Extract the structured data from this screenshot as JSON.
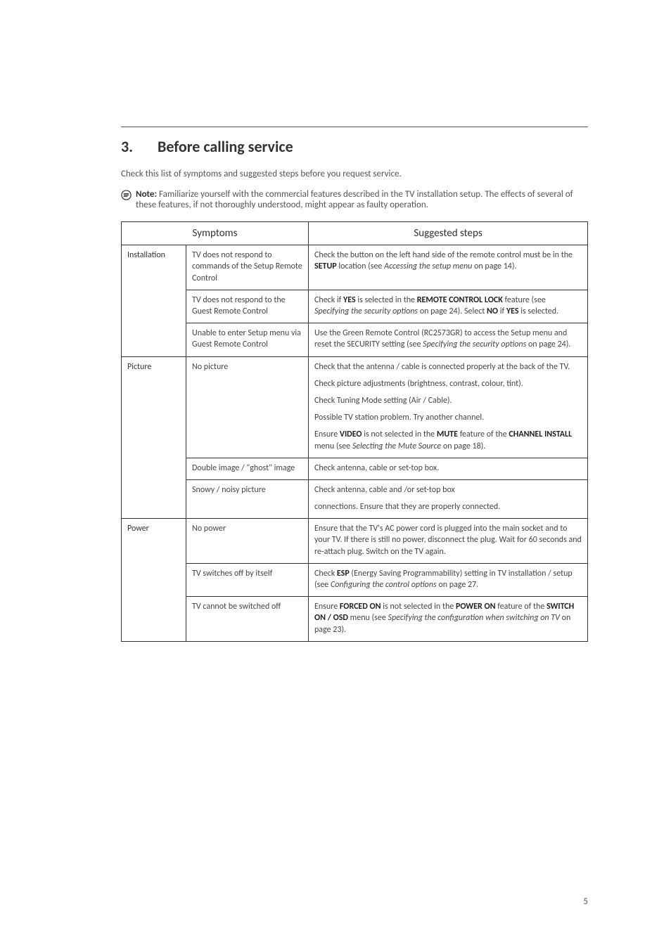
{
  "heading": {
    "number": "3.",
    "title": "Before calling service"
  },
  "intro": "Check this list of symptoms and suggested steps before you request service.",
  "note": {
    "label": "Note:",
    "text": "Familiarize yourself with the commercial features described in the TV installation setup. The effects of several of these features, if not thoroughly understood, might appear as faulty operation."
  },
  "table": {
    "head_symptoms": "Symptoms",
    "head_steps": "Suggested steps",
    "groups": [
      {
        "category": "Installation",
        "rows": [
          {
            "symptom": "TV does not respond to commands of the Setup Remote Control",
            "paras": [
              "Check the button on the left hand side of the remote control must be in the <span class='b'>SETUP</span> location (see <span class='it'>Accessing the setup menu</span> on page 14)."
            ]
          },
          {
            "symptom": "TV does not respond to the Guest Remote Control",
            "paras": [
              "Check if <span class='b'>YES</span> is selected in the <span class='b'>REMOTE CONTROL LOCK</span> feature (see <span class='it'>Specifying the security options</span> on page 24). Select <span class='b'>NO</span> if <span class='b'>YES</span> is selected."
            ]
          },
          {
            "symptom": "Unable to enter Setup menu via Guest Remote Control",
            "paras": [
              "Use the Green Remote Control (RC2573GR) to access the Setup menu and reset the SECURITY setting (see <span class='it'>Specifying the security options</span> on page 24)."
            ]
          }
        ]
      },
      {
        "category": "Picture",
        "rows": [
          {
            "symptom": "No picture",
            "paras": [
              "Check that the antenna / cable is connected properly at the back of the TV.",
              "Check picture adjustments (brightness, contrast, colour, tint).",
              "Check Tuning Mode setting (Air / Cable).",
              "Possible TV station problem. Try another channel.",
              "Ensure <span class='b'>VIDEO</span> is not selected in the <span class='b'>MUTE</span> feature of the <span class='b'>CHANNEL INSTALL</span> menu (see <span class='it'>Selecting the Mute Source</span> on page 18)."
            ]
          },
          {
            "symptom": "Double image / \"ghost\" image",
            "paras": [
              "Check antenna, cable or set-top box."
            ]
          },
          {
            "symptom": "Snowy / noisy picture",
            "paras": [
              "Check antenna, cable and /or set-top box",
              "connections. Ensure that they are properly connected."
            ]
          }
        ]
      },
      {
        "category": "Power",
        "rows": [
          {
            "symptom": "No power",
            "paras": [
              "Ensure that the TV's AC power cord is plugged into the main socket and to your TV. If there is still no power, disconnect the plug. Wait for 60 seconds and re-attach plug. Switch on the TV again."
            ]
          },
          {
            "symptom": "TV switches off by itself",
            "paras": [
              "Check <span class='b'>ESP</span> (Energy Saving Programmability) setting in TV installation / setup (see <span class='it'>Configuring the control options</span> on page 27."
            ]
          },
          {
            "symptom": "TV cannot be switched off",
            "paras": [
              "Ensure <span class='b'>FORCED ON</span> is not selected in the <span class='b'>POWER ON</span> feature of the <span class='b'>SWITCH ON / OSD</span> menu (see <span class='it'>Specifying the configuration when switching on TV</span> on page 23)."
            ]
          }
        ]
      }
    ]
  },
  "page_number": "5"
}
